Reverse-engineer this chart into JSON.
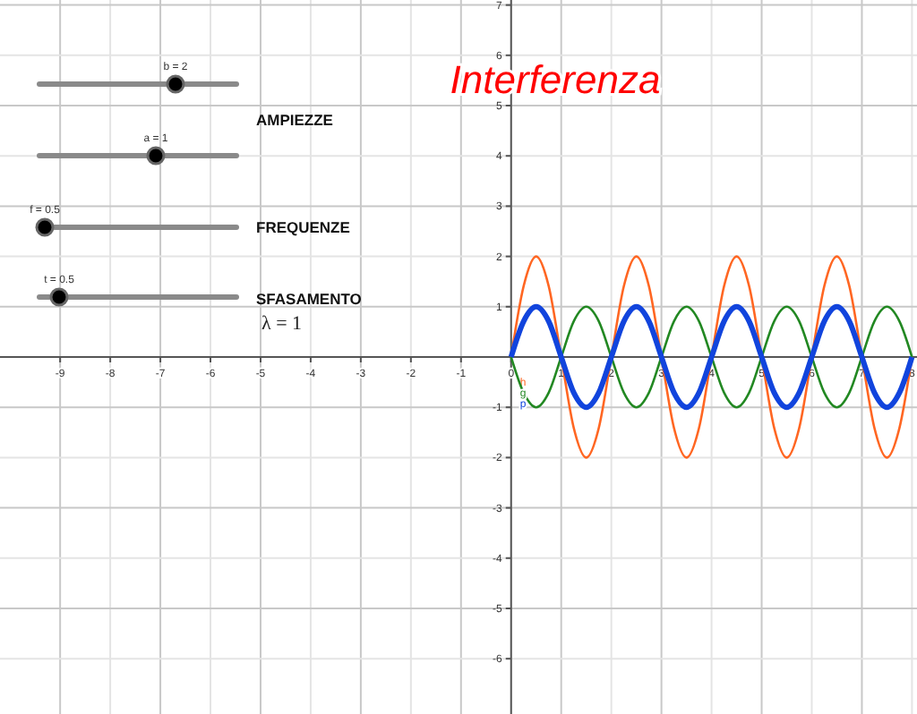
{
  "chart_data": {
    "type": "line",
    "title": "Interferenza",
    "annotations": [
      "b = 2",
      "a = 1",
      "f = 0.5",
      "t = 0.5",
      "AMPIEZZE",
      "FREQUENZE",
      "SFASAMENTO",
      "λ = 1"
    ],
    "x": [
      0,
      0.25,
      0.5,
      0.75,
      1,
      1.25,
      1.5,
      1.75,
      2,
      2.25,
      2.5,
      2.75,
      3,
      3.25,
      3.5,
      3.75,
      4,
      4.25,
      4.5,
      4.75,
      5,
      5.25,
      5.5,
      5.75,
      6,
      6.25,
      6.5,
      6.75,
      7,
      7.25,
      7.5,
      7.75,
      8
    ],
    "series": [
      {
        "name": "h",
        "color": "#ff6622",
        "values": [
          0,
          1.41,
          2,
          1.41,
          0,
          -1.41,
          -2,
          -1.41,
          0,
          1.41,
          2,
          1.41,
          0,
          -1.41,
          -2,
          -1.41,
          0,
          1.41,
          2,
          1.41,
          0,
          -1.41,
          -2,
          -1.41,
          0,
          1.41,
          2,
          1.41,
          0,
          -1.41,
          -2,
          -1.41,
          0
        ]
      },
      {
        "name": "g",
        "color": "#228822",
        "values": [
          0,
          -0.71,
          -1,
          -0.71,
          0,
          0.71,
          1,
          0.71,
          0,
          -0.71,
          -1,
          -0.71,
          0,
          0.71,
          1,
          0.71,
          0,
          -0.71,
          -1,
          -0.71,
          0,
          0.71,
          1,
          0.71,
          0,
          -0.71,
          -1,
          -0.71,
          0,
          0.71,
          1,
          0.71,
          0
        ]
      },
      {
        "name": "p",
        "color": "#1144dd",
        "values": [
          0,
          0.71,
          1,
          0.71,
          0,
          -0.71,
          -1,
          -0.71,
          0,
          0.71,
          1,
          0.71,
          0,
          -0.71,
          -1,
          -0.71,
          0,
          0.71,
          1,
          0.71,
          0,
          -0.71,
          -1,
          -0.71,
          0,
          0.71,
          1,
          0.71,
          0,
          -0.71,
          -1,
          -0.71,
          0
        ]
      }
    ],
    "xlim": [
      -10.2,
      8.1
    ],
    "ylim": [
      -7.1,
      7.1
    ],
    "xticks": [
      -9,
      -8,
      -7,
      -6,
      -5,
      -4,
      -3,
      -2,
      -1,
      0,
      1,
      2,
      3,
      4,
      5,
      6,
      7,
      8
    ],
    "yticks": [
      -6,
      -5,
      -4,
      -3,
      -2,
      -1,
      1,
      2,
      3,
      4,
      5,
      6,
      7
    ],
    "grid": true,
    "line_style": "solid",
    "marker": "none"
  }
}
